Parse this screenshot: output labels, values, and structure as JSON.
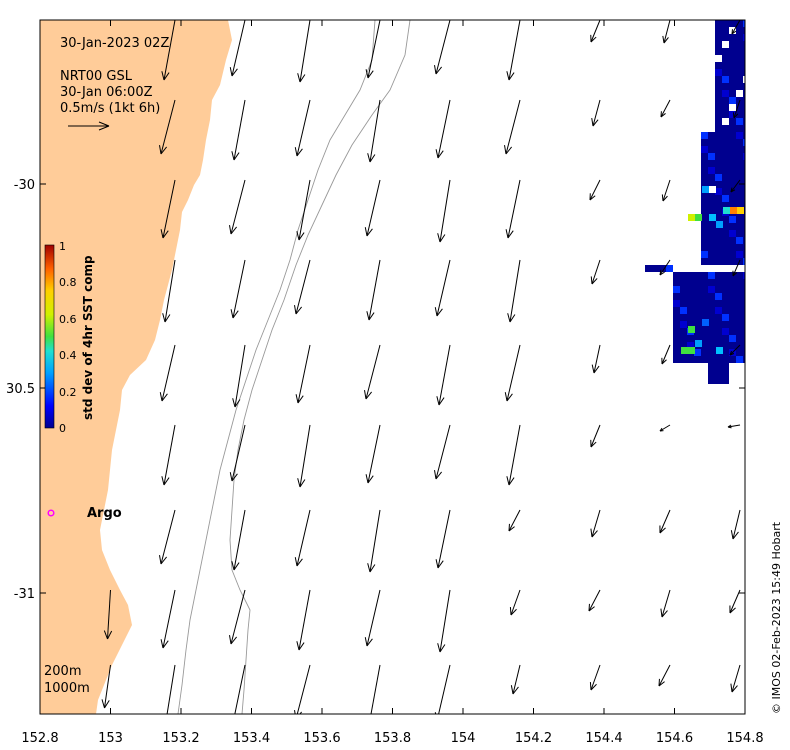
{
  "map": {
    "x_ticks": [
      "152.8",
      "153",
      "153.2",
      "153.4",
      "153.6",
      "153.8",
      "154",
      "154.2",
      "154.4",
      "154.6",
      "154.8"
    ],
    "y_ticks": [
      "-30",
      "30.5",
      "-31"
    ],
    "annotation": {
      "date": "30-Jan-2023 02Z",
      "source": "NRT00 GSL",
      "current_time": "30-Jan 06:00Z",
      "scale": "0.5m/s (1kt 6h)"
    },
    "colorbar": {
      "label": "std dev of 4hr SST comp",
      "ticks": [
        "0",
        "0.2",
        "0.4",
        "0.6",
        "0.8",
        "1"
      ]
    },
    "argo_label": "Argo",
    "contours": [
      "200m",
      "1000m"
    ],
    "credit": "© IMOS 02-Feb-2023 15:49 Hobart"
  },
  "colors": {
    "land": "#ffcc99",
    "argo_marker": "#ff00ff",
    "contour": "#999999"
  }
}
